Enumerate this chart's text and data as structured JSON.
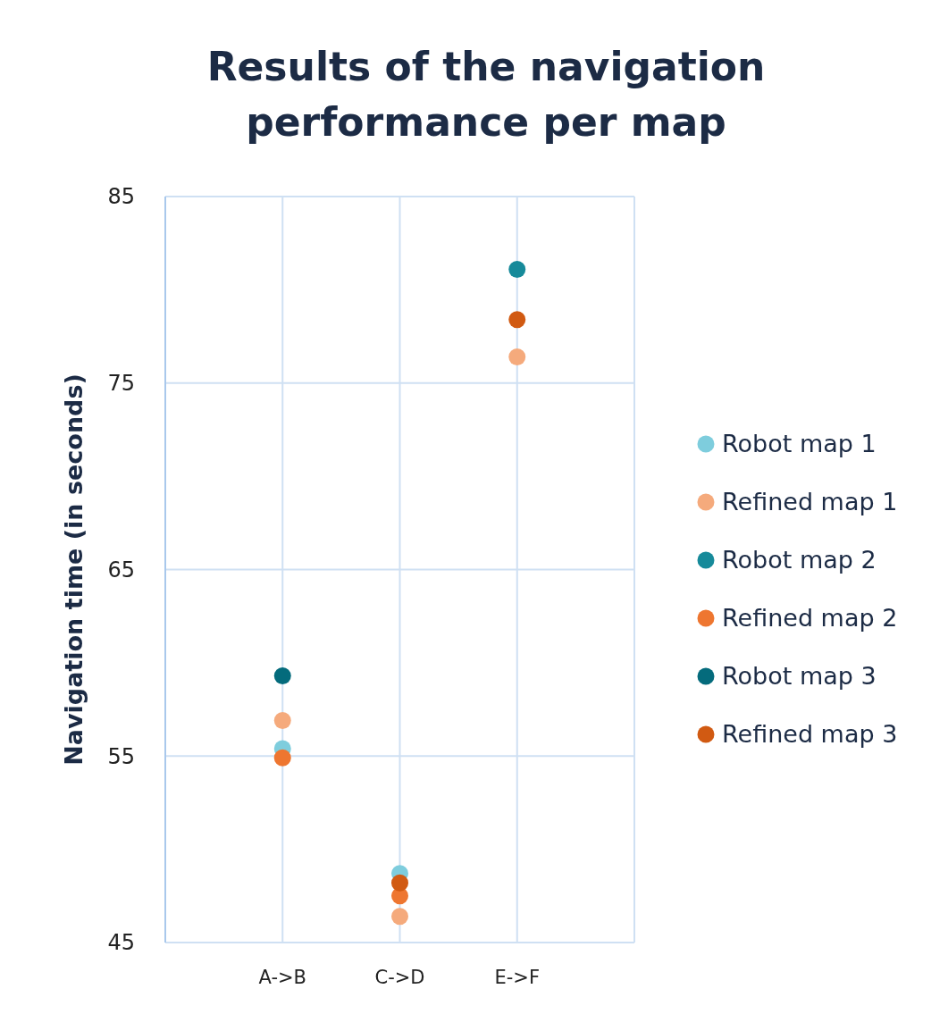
{
  "chart_data": {
    "type": "scatter",
    "title": "Results of the navigation performance per map",
    "ylabel": "Navigation time (in seconds)",
    "categories": [
      "A->B",
      "C->D",
      "E->F"
    ],
    "series": [
      {
        "name": "Robot map 1",
        "color": "#7ecddd",
        "values": [
          55.4,
          48.7,
          null
        ]
      },
      {
        "name": "Refined map 1",
        "color": "#f5aa7c",
        "values": [
          56.9,
          46.4,
          76.4
        ]
      },
      {
        "name": "Robot map 2",
        "color": "#168a9a",
        "values": [
          null,
          null,
          81.1
        ]
      },
      {
        "name": "Refined map 2",
        "color": "#ee7630",
        "values": [
          54.9,
          47.5,
          null
        ]
      },
      {
        "name": "Robot map 3",
        "color": "#046b7c",
        "values": [
          59.3,
          null,
          null
        ]
      },
      {
        "name": "Refined map 3",
        "color": "#d15a12",
        "values": [
          null,
          48.2,
          78.4
        ]
      }
    ],
    "ylim": [
      45,
      85
    ],
    "yticks": [
      45,
      55,
      65,
      75,
      85
    ],
    "grid": true,
    "legend": "right",
    "marker": "circle"
  }
}
